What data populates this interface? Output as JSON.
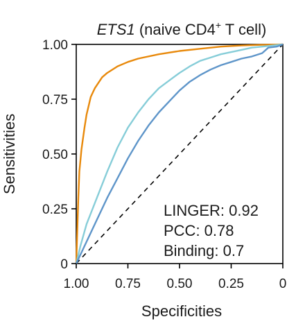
{
  "chart_data": {
    "type": "line",
    "title": {
      "gene": "ETS1",
      "context_prefix": " (naive CD4",
      "superscript": "+",
      "context_suffix": " T cell)"
    },
    "xlabel": "Specificities",
    "ylabel": "Sensitivities",
    "xlim": [
      1.0,
      0.0
    ],
    "ylim": [
      0.0,
      1.0
    ],
    "x_reversed": true,
    "x_ticks": [
      1.0,
      0.75,
      0.5,
      0.25,
      0.0
    ],
    "x_tick_labels": [
      "1.00",
      "0.75",
      "0.50",
      "0.25",
      "0"
    ],
    "y_ticks": [
      0.0,
      0.25,
      0.5,
      0.75,
      1.0
    ],
    "y_tick_labels": [
      "0",
      "0.25",
      "0.50",
      "0.75",
      "1.00"
    ],
    "grid": false,
    "reference_line": {
      "from": [
        1.0,
        0.0
      ],
      "to": [
        0.0,
        1.0
      ],
      "style": "dashed",
      "color": "#000000"
    },
    "series": [
      {
        "color": "#E8890B",
        "points": [
          [
            1.0,
            0.0
          ],
          [
            0.995,
            0.15
          ],
          [
            0.99,
            0.3
          ],
          [
            0.985,
            0.42
          ],
          [
            0.975,
            0.52
          ],
          [
            0.96,
            0.62
          ],
          [
            0.95,
            0.68
          ],
          [
            0.93,
            0.76
          ],
          [
            0.91,
            0.8
          ],
          [
            0.875,
            0.85
          ],
          [
            0.85,
            0.87
          ],
          [
            0.8,
            0.9
          ],
          [
            0.75,
            0.92
          ],
          [
            0.7,
            0.935
          ],
          [
            0.6,
            0.955
          ],
          [
            0.5,
            0.97
          ],
          [
            0.4,
            0.98
          ],
          [
            0.3,
            0.99
          ],
          [
            0.2,
            0.995
          ],
          [
            0.1,
            0.998
          ],
          [
            0.0,
            1.0
          ]
        ]
      },
      {
        "color": "#86CDD8",
        "points": [
          [
            1.0,
            0.0
          ],
          [
            0.98,
            0.08
          ],
          [
            0.95,
            0.18
          ],
          [
            0.9,
            0.3
          ],
          [
            0.85,
            0.42
          ],
          [
            0.8,
            0.53
          ],
          [
            0.75,
            0.62
          ],
          [
            0.7,
            0.69
          ],
          [
            0.65,
            0.75
          ],
          [
            0.6,
            0.8
          ],
          [
            0.55,
            0.835
          ],
          [
            0.5,
            0.87
          ],
          [
            0.45,
            0.9
          ],
          [
            0.4,
            0.925
          ],
          [
            0.35,
            0.94
          ],
          [
            0.3,
            0.955
          ],
          [
            0.25,
            0.965
          ],
          [
            0.2,
            0.975
          ],
          [
            0.15,
            0.985
          ],
          [
            0.1,
            0.99
          ],
          [
            0.05,
            0.995
          ],
          [
            0.0,
            1.0
          ]
        ]
      },
      {
        "color": "#5E95C9",
        "points": [
          [
            1.0,
            0.0
          ],
          [
            0.95,
            0.1
          ],
          [
            0.9,
            0.2
          ],
          [
            0.85,
            0.3
          ],
          [
            0.8,
            0.39
          ],
          [
            0.75,
            0.48
          ],
          [
            0.7,
            0.56
          ],
          [
            0.65,
            0.63
          ],
          [
            0.6,
            0.69
          ],
          [
            0.55,
            0.74
          ],
          [
            0.5,
            0.79
          ],
          [
            0.45,
            0.83
          ],
          [
            0.4,
            0.86
          ],
          [
            0.35,
            0.885
          ],
          [
            0.3,
            0.905
          ],
          [
            0.25,
            0.92
          ],
          [
            0.2,
            0.935
          ],
          [
            0.15,
            0.945
          ],
          [
            0.1,
            0.96
          ],
          [
            0.07,
            0.985
          ],
          [
            0.03,
            0.99
          ],
          [
            0.0,
            1.0
          ]
        ]
      }
    ],
    "annotations": [
      "LINGER: 0.92",
      "PCC: 0.78",
      "Binding: 0.7"
    ]
  }
}
